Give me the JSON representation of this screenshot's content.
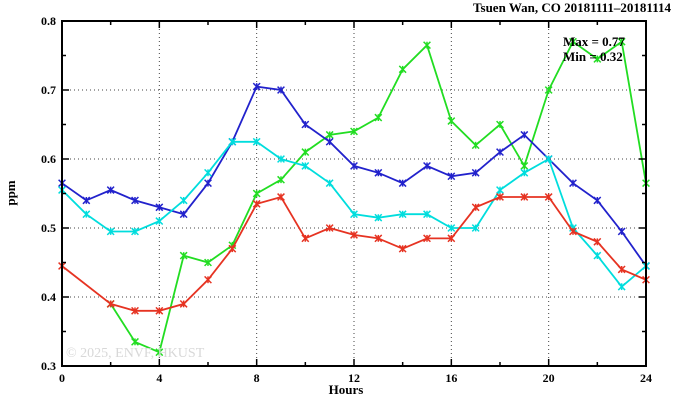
{
  "title": "Tsuen Wan, CO 20181111–20181114",
  "annotation": {
    "max_label": "Max = 0.77",
    "min_label": "Min = 0.32"
  },
  "watermark": "© 2025, ENVF, HKUST",
  "axes": {
    "xlabel": "Hours",
    "ylabel": "ppm"
  },
  "chart_data": {
    "type": "line",
    "title": "Tsuen Wan, CO 20181111–20181114",
    "xlabel": "Hours",
    "ylabel": "ppm",
    "xlim": [
      0,
      24
    ],
    "ylim": [
      0.3,
      0.8
    ],
    "x_major_ticks": [
      0,
      4,
      8,
      12,
      16,
      20,
      24
    ],
    "x_minor_ticks": [
      2,
      6,
      10,
      14,
      18,
      22
    ],
    "y_major_ticks": [
      0.3,
      0.4,
      0.5,
      0.6,
      0.7,
      0.8
    ],
    "y_minor_ticks": [
      0.35,
      0.45,
      0.55,
      0.65,
      0.75
    ],
    "grid": "dotted-at-major-ticks",
    "legend_position": "none",
    "marker": "asterisk",
    "stat_max": 0.77,
    "stat_min": 0.32,
    "x": [
      0,
      1,
      2,
      3,
      4,
      5,
      6,
      7,
      8,
      9,
      10,
      11,
      12,
      13,
      14,
      15,
      16,
      17,
      18,
      19,
      20,
      21,
      22,
      23,
      24
    ],
    "series": [
      {
        "name": "series-green",
        "color": "#22dd22",
        "values": [
          null,
          null,
          0.39,
          0.335,
          0.32,
          0.46,
          0.45,
          0.475,
          0.55,
          0.57,
          0.61,
          0.635,
          0.64,
          0.66,
          0.73,
          0.765,
          0.655,
          0.62,
          0.65,
          0.59,
          0.7,
          0.77,
          0.745,
          0.77,
          0.565
        ]
      },
      {
        "name": "series-blue",
        "color": "#2222cc",
        "values": [
          0.565,
          0.54,
          0.555,
          0.54,
          0.53,
          0.52,
          0.565,
          0.625,
          0.705,
          0.7,
          0.65,
          0.625,
          0.59,
          0.58,
          0.565,
          0.59,
          0.575,
          0.58,
          0.61,
          0.635,
          0.6,
          0.565,
          0.54,
          0.495,
          0.445
        ]
      },
      {
        "name": "series-cyan",
        "color": "#00dddd",
        "values": [
          0.555,
          0.52,
          0.495,
          0.495,
          0.51,
          0.54,
          0.58,
          0.625,
          0.625,
          0.6,
          0.59,
          0.565,
          0.52,
          0.515,
          0.52,
          0.52,
          0.5,
          0.5,
          0.555,
          0.58,
          0.6,
          0.5,
          0.46,
          0.415,
          0.445
        ]
      },
      {
        "name": "series-red",
        "color": "#e63322",
        "values": [
          0.445,
          null,
          0.39,
          0.38,
          0.38,
          0.39,
          0.425,
          0.47,
          0.535,
          0.545,
          0.485,
          0.5,
          0.49,
          0.485,
          0.47,
          0.485,
          0.485,
          0.53,
          0.545,
          0.545,
          0.545,
          0.495,
          0.48,
          0.44,
          0.425
        ]
      }
    ]
  },
  "colors": {
    "axis": "#000000",
    "grid": "#444444",
    "watermark": "#d8d8d8",
    "background": "#ffffff"
  }
}
